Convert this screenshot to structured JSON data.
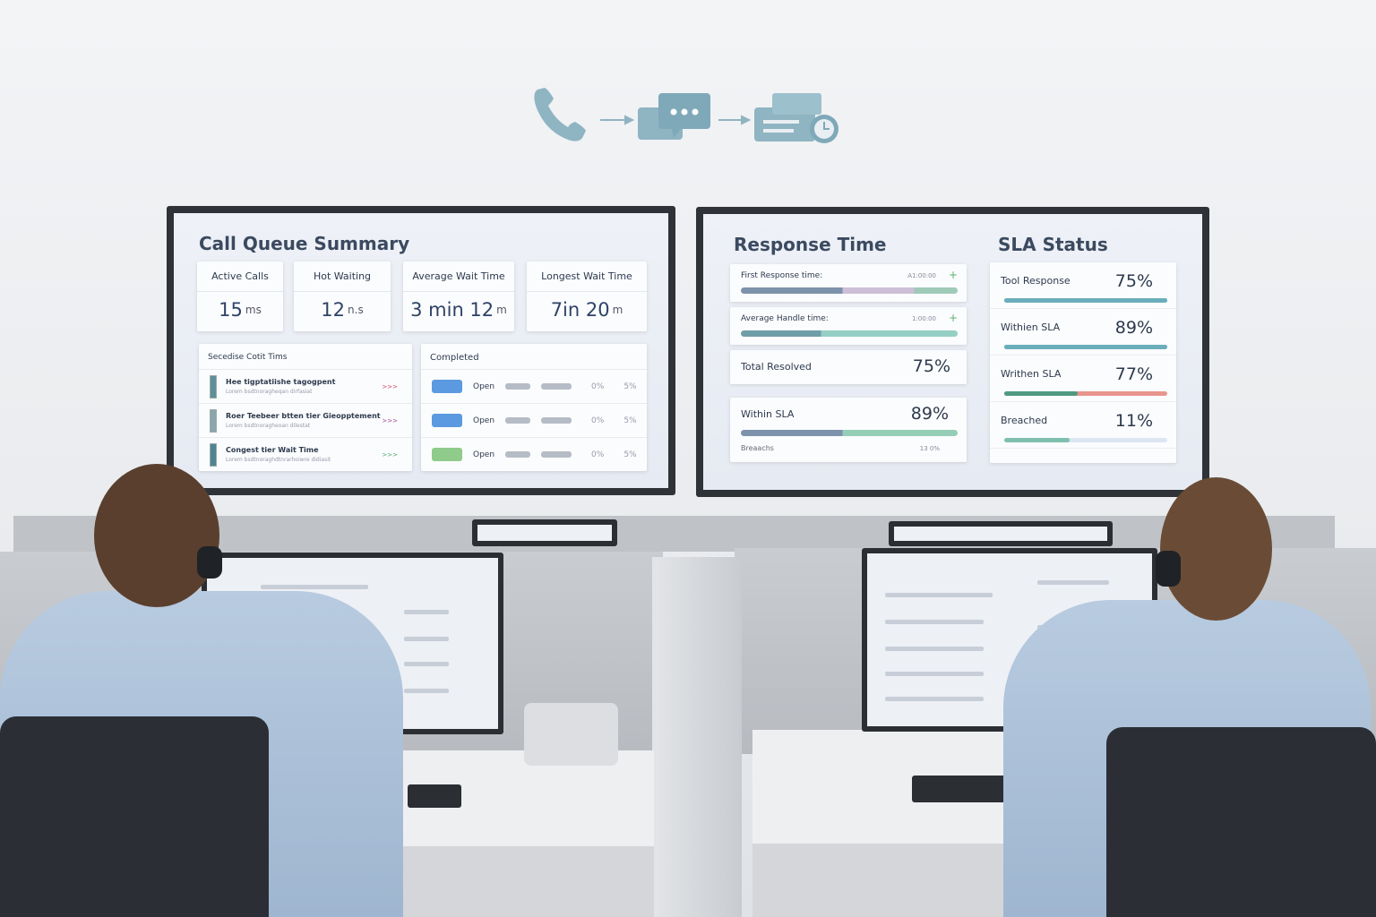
{
  "flow_icons": [
    "phone-icon",
    "chat-bubble-icon",
    "ticket-clock-icon"
  ],
  "call_queue": {
    "title": "Call Queue Summary",
    "kpis": [
      {
        "label": "Active Calls",
        "value": "15",
        "unit": "ms"
      },
      {
        "label": "Hot Waiting",
        "value": "12",
        "unit": "n.s"
      },
      {
        "label": "Average Wait Time",
        "value": "3 min 12",
        "unit": "m"
      },
      {
        "label": "Longest Wait Time",
        "value": "7in 20",
        "unit": "m"
      }
    ],
    "list_title": "Secedise Cotit Tims",
    "list": [
      {
        "title": "Hee tigptatiishe tagogpent",
        "sub": "Lorem bsdtnoragheqan dirfasiat",
        "tag": ">>>",
        "tag_color": "#d0435f"
      },
      {
        "title": "Roer Teebeer btten tier Gieopptement",
        "sub": "Lorem bsdtnoragheoan dilestat",
        "tag": ">>>",
        "tag_color": "#9a3f8e"
      },
      {
        "title": "Congest tier Wait Time",
        "sub": "Lorem bsdtnoraghdtnrarhoiwre didiasit",
        "tag": ">>>",
        "tag_color": "#4aa868"
      }
    ],
    "completed_title": "Completed",
    "completed": [
      {
        "status": "Open",
        "c1": "0%",
        "c2": "5%",
        "color": "#5b9ae0"
      },
      {
        "status": "Open",
        "c1": "0%",
        "c2": "5%",
        "color": "#5b9ae0"
      },
      {
        "status": "Open",
        "c1": "0%",
        "c2": "5%",
        "color": "#8fcb8a"
      }
    ]
  },
  "response_time": {
    "title": "Response Time",
    "first_response": {
      "label": "First Response time:",
      "value": "A1:00:00"
    },
    "avg_handle": {
      "label": "Average Handle time:",
      "value": "1:00:00"
    },
    "total_resolved": {
      "label": "Total Resolved",
      "value": "75%"
    },
    "within_sla": {
      "label": "Within SLA",
      "value": "89%",
      "percent": 89
    },
    "breaches": {
      "label": "Breaachs",
      "value": "13 0%"
    }
  },
  "sla_status": {
    "title": "SLA Status",
    "items": [
      {
        "label": "Tool Response",
        "value": "75%",
        "percent": 75
      },
      {
        "label": "Withien SLA",
        "value": "89%",
        "percent": 89
      },
      {
        "label": "Writhen SLA",
        "value": "77%",
        "percent": 77
      },
      {
        "label": "Breached",
        "value": "11%",
        "percent": 11
      }
    ]
  },
  "colors": {
    "bezel": "#2f3338",
    "accent_teal": "#6aaebc",
    "icon": "#8fb4c2",
    "breach_red": "#e8958e"
  }
}
